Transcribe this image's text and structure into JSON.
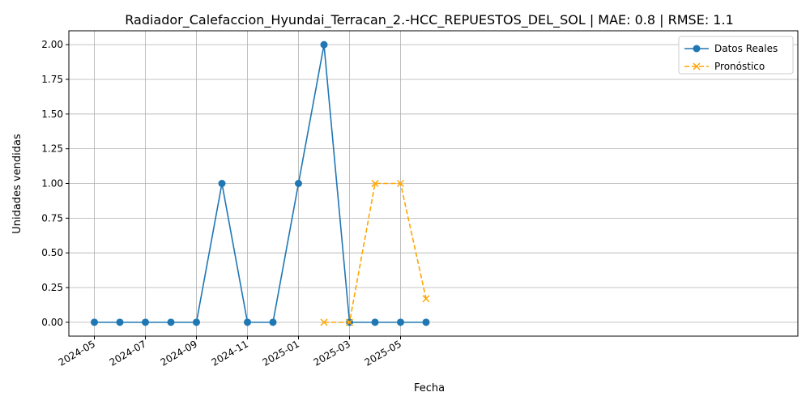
{
  "chart_data": {
    "type": "line",
    "title": "Radiador_Calefaccion_Hyundai_Terracan_2.-HCC_REPUESTOS_DEL_SOL | MAE: 0.8 | RMSE: 1.1",
    "xlabel": "Fecha",
    "ylabel": "Unidades vendidas",
    "x_ticks": [
      "2024-05",
      "2024-07",
      "2024-09",
      "2024-11",
      "2025-01",
      "2025-03",
      "2025-05"
    ],
    "y_ticks": [
      "0.00",
      "0.25",
      "0.50",
      "0.75",
      "1.00",
      "1.25",
      "1.50",
      "1.75",
      "2.00"
    ],
    "ylim": [
      -0.1,
      2.1
    ],
    "grid": true,
    "legend_position": "top-right",
    "series": [
      {
        "name": "Datos Reales",
        "color": "#1f77b4",
        "line_style": "solid",
        "marker": "circle",
        "x": [
          "2024-05",
          "2024-06",
          "2024-07",
          "2024-08",
          "2024-09",
          "2024-10",
          "2024-11",
          "2024-12",
          "2025-01",
          "2025-02",
          "2025-03",
          "2025-04",
          "2025-05",
          "2025-06"
        ],
        "values": [
          0,
          0,
          0,
          0,
          0,
          1,
          0,
          0,
          1,
          2,
          0,
          0,
          0,
          0
        ]
      },
      {
        "name": "Pronóstico",
        "color": "#ffa500",
        "line_style": "dashed",
        "marker": "x",
        "x": [
          "2025-02",
          "2025-03",
          "2025-04",
          "2025-05",
          "2025-06"
        ],
        "values": [
          0,
          0,
          1,
          1,
          0.17
        ]
      }
    ]
  }
}
